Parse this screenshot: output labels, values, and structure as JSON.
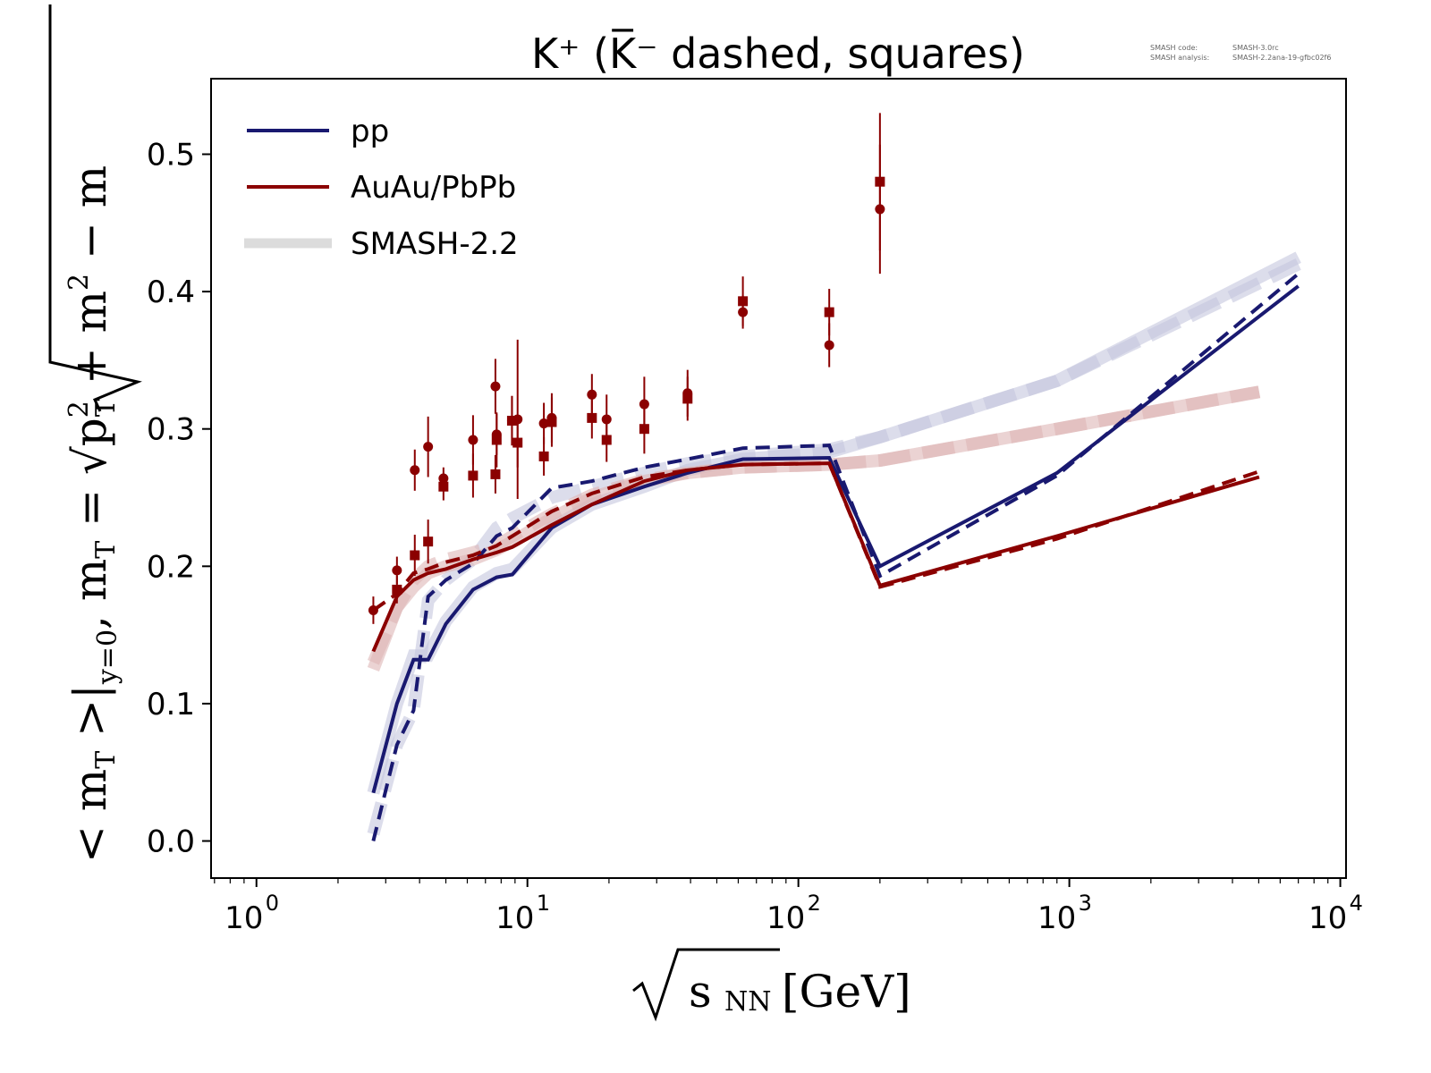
{
  "chart_data": {
    "type": "line",
    "title": "K⁺ (K̅⁻ dashed, squares)",
    "xlabel": "√sNN [GeV]",
    "xlabel_parts": {
      "root": "√",
      "main": "s",
      "sub": "NN",
      "unit": "[GeV]"
    },
    "ylabel": "<mT>|y=0, mT = √(pT² + m²) − m",
    "ylabel_parts": {
      "lhs": "< m",
      "lhs_sub": "T",
      "lhs2": " >|",
      "lhs_sub2": "y=0",
      "mid": ", m",
      "mid_sub": "T",
      "eq": " = √",
      "rad1": "p",
      "rad1_sup": "2",
      "rad1_sub": "T",
      "rad2": " + m",
      "rad2_sup": "2",
      "tail": " − m"
    },
    "xscale": "log",
    "xlim": [
      0.68,
      10500
    ],
    "ylim": [
      -0.027,
      0.555
    ],
    "x_ticks": [
      {
        "value": 1,
        "base": "10",
        "exp": "0"
      },
      {
        "value": 10,
        "base": "10",
        "exp": "1"
      },
      {
        "value": 100,
        "base": "10",
        "exp": "2"
      },
      {
        "value": 1000,
        "base": "10",
        "exp": "3"
      },
      {
        "value": 10000,
        "base": "10",
        "exp": "4"
      }
    ],
    "y_ticks": [
      {
        "value": 0.0,
        "label": "0.0"
      },
      {
        "value": 0.1,
        "label": "0.1"
      },
      {
        "value": 0.2,
        "label": "0.2"
      },
      {
        "value": 0.3,
        "label": "0.3"
      },
      {
        "value": 0.4,
        "label": "0.4"
      },
      {
        "value": 0.5,
        "label": "0.5"
      }
    ],
    "grid": false,
    "legend": {
      "placement": "top-left",
      "entries": [
        {
          "label": "pp",
          "color": "#191970",
          "style": "solid"
        },
        {
          "label": "AuAu/PbPb",
          "color": "#8b0000",
          "style": "solid"
        },
        {
          "label": "SMASH-2.2",
          "color": "#d9d9d9",
          "style": "thick"
        }
      ]
    },
    "colors": {
      "pp": "#191970",
      "auau": "#8b0000",
      "smash_pp": "#c5c7dd",
      "smash_auau": "#ddb5b5"
    },
    "series": [
      {
        "name": "pp K+ (SMASH-2.2)",
        "group": "smash_pp",
        "style": "thick-solid",
        "x": [
          2.7,
          3.3,
          3.8,
          4.3,
          5.0,
          6.3,
          7.7,
          8.8,
          12.3,
          17.3,
          27,
          39,
          62.4,
          130,
          200,
          900,
          7000
        ],
        "y": [
          0.035,
          0.1,
          0.135,
          0.135,
          0.16,
          0.185,
          0.195,
          0.198,
          0.228,
          0.245,
          0.258,
          0.27,
          0.278,
          0.283,
          0.294,
          0.335,
          0.425
        ]
      },
      {
        "name": "pp K- (SMASH-2.2)",
        "group": "smash_pp",
        "style": "thick-dashed",
        "x": [
          2.7,
          3.3,
          3.8,
          4.3,
          5.0,
          6.3,
          7.7,
          8.8,
          12.3,
          17.3,
          27,
          39,
          62.4,
          130,
          200,
          900,
          7000
        ],
        "y": [
          0.005,
          0.07,
          0.095,
          0.175,
          0.19,
          0.205,
          0.228,
          0.235,
          0.25,
          0.258,
          0.268,
          0.275,
          0.28,
          0.285,
          0.294,
          0.335,
          0.42
        ]
      },
      {
        "name": "AuAu K+ (SMASH-2.2)",
        "group": "smash_auau",
        "style": "thick-solid",
        "x": [
          2.7,
          3.3,
          3.8,
          4.3,
          5.0,
          6.3,
          7.7,
          8.8,
          12.3,
          17.3,
          27,
          39,
          62.4,
          130,
          200,
          900,
          5020
        ],
        "y": [
          0.125,
          0.17,
          0.185,
          0.195,
          0.2,
          0.205,
          0.212,
          0.218,
          0.235,
          0.25,
          0.262,
          0.268,
          0.272,
          0.274,
          0.277,
          0.3,
          0.327
        ]
      },
      {
        "name": "AuAu K- (SMASH-2.2)",
        "group": "smash_auau",
        "style": "thick-dashed",
        "x": [
          2.7,
          3.3,
          3.8,
          4.3,
          5.0,
          6.3,
          7.7,
          8.8,
          12.3,
          17.3,
          27,
          39,
          62.4,
          130,
          200,
          900,
          5020
        ],
        "y": [
          0.13,
          0.17,
          0.19,
          0.2,
          0.205,
          0.21,
          0.215,
          0.222,
          0.238,
          0.252,
          0.263,
          0.268,
          0.272,
          0.274,
          0.277,
          0.3,
          0.327
        ]
      },
      {
        "name": "pp K+",
        "group": "pp",
        "style": "solid",
        "x": [
          2.7,
          3.3,
          3.8,
          4.3,
          5.0,
          6.3,
          7.7,
          8.8,
          12.3,
          17.3,
          27,
          39,
          62.4,
          130,
          200,
          900,
          7000
        ],
        "y": [
          0.035,
          0.1,
          0.132,
          0.132,
          0.158,
          0.183,
          0.192,
          0.194,
          0.228,
          0.245,
          0.258,
          0.268,
          0.278,
          0.279,
          0.2,
          0.268,
          0.404
        ]
      },
      {
        "name": "pp K-",
        "group": "pp",
        "style": "dashed",
        "x": [
          2.7,
          3.3,
          3.8,
          4.3,
          5.0,
          6.3,
          7.7,
          8.8,
          12.3,
          17.3,
          27,
          39,
          62.4,
          130,
          200,
          900,
          7000
        ],
        "y": [
          0.0,
          0.07,
          0.095,
          0.178,
          0.19,
          0.202,
          0.222,
          0.228,
          0.257,
          0.262,
          0.272,
          0.278,
          0.286,
          0.288,
          0.193,
          0.266,
          0.413
        ]
      },
      {
        "name": "AuAu K+",
        "group": "auau",
        "style": "solid",
        "x": [
          2.7,
          3.3,
          3.8,
          4.3,
          5.0,
          6.3,
          7.7,
          8.8,
          12.3,
          17.3,
          27,
          39,
          62.4,
          130,
          200,
          900,
          5020
        ],
        "y": [
          0.138,
          0.178,
          0.19,
          0.195,
          0.198,
          0.205,
          0.21,
          0.214,
          0.23,
          0.245,
          0.262,
          0.27,
          0.274,
          0.275,
          0.186,
          0.222,
          0.265
        ]
      },
      {
        "name": "AuAu K-",
        "group": "auau",
        "style": "dashed",
        "x": [
          2.7,
          3.3,
          3.8,
          4.3,
          5.0,
          6.3,
          7.7,
          8.8,
          12.3,
          17.3,
          27,
          39,
          62.4,
          130,
          200,
          900,
          5020
        ],
        "y": [
          0.168,
          0.18,
          0.195,
          0.198,
          0.203,
          0.208,
          0.215,
          0.222,
          0.24,
          0.253,
          0.265,
          0.27,
          0.274,
          0.275,
          0.185,
          0.22,
          0.269
        ]
      }
    ],
    "data_points": {
      "color": "#8b0000",
      "kplus_circles": [
        {
          "x": 2.7,
          "y": 0.168,
          "err": 0.01
        },
        {
          "x": 3.3,
          "y": 0.197,
          "err": 0.01
        },
        {
          "x": 3.84,
          "y": 0.27,
          "err": 0.015
        },
        {
          "x": 4.3,
          "y": 0.287,
          "err": 0.022
        },
        {
          "x": 4.9,
          "y": 0.264,
          "err": 0.008
        },
        {
          "x": 6.3,
          "y": 0.292,
          "err": 0.018
        },
        {
          "x": 7.62,
          "y": 0.331,
          "err": 0.02
        },
        {
          "x": 7.7,
          "y": 0.296,
          "err": 0.015
        },
        {
          "x": 8.77,
          "y": 0.306,
          "err": 0.018
        },
        {
          "x": 9.2,
          "y": 0.307,
          "err": 0.058
        },
        {
          "x": 11.5,
          "y": 0.304,
          "err": 0.015
        },
        {
          "x": 12.3,
          "y": 0.308,
          "err": 0.018
        },
        {
          "x": 17.3,
          "y": 0.325,
          "err": 0.015
        },
        {
          "x": 19.6,
          "y": 0.307,
          "err": 0.018
        },
        {
          "x": 27,
          "y": 0.318,
          "err": 0.02
        },
        {
          "x": 39,
          "y": 0.326,
          "err": 0.017
        },
        {
          "x": 62.4,
          "y": 0.385,
          "err": 0.012
        },
        {
          "x": 130,
          "y": 0.361,
          "err": 0.016
        },
        {
          "x": 200,
          "y": 0.46,
          "err": 0.047
        }
      ],
      "kminus_squares": [
        {
          "x": 3.3,
          "y": 0.183,
          "err": 0.01
        },
        {
          "x": 3.84,
          "y": 0.208,
          "err": 0.015
        },
        {
          "x": 4.3,
          "y": 0.218,
          "err": 0.016
        },
        {
          "x": 4.9,
          "y": 0.258,
          "err": 0.01
        },
        {
          "x": 6.3,
          "y": 0.266,
          "err": 0.016
        },
        {
          "x": 7.62,
          "y": 0.267,
          "err": 0.014
        },
        {
          "x": 7.7,
          "y": 0.292,
          "err": 0.02
        },
        {
          "x": 8.77,
          "y": 0.306,
          "err": 0.018
        },
        {
          "x": 9.2,
          "y": 0.29,
          "err": 0.018
        },
        {
          "x": 11.5,
          "y": 0.28,
          "err": 0.014
        },
        {
          "x": 12.3,
          "y": 0.305,
          "err": 0.018
        },
        {
          "x": 17.3,
          "y": 0.308,
          "err": 0.015
        },
        {
          "x": 19.6,
          "y": 0.292,
          "err": 0.016
        },
        {
          "x": 27,
          "y": 0.3,
          "err": 0.018
        },
        {
          "x": 39,
          "y": 0.322,
          "err": 0.016
        },
        {
          "x": 62.4,
          "y": 0.393,
          "err": 0.018
        },
        {
          "x": 130,
          "y": 0.385,
          "err": 0.017
        },
        {
          "x": 200,
          "y": 0.48,
          "err": 0.05
        }
      ]
    }
  },
  "version_info": {
    "line1_key": "SMASH code:",
    "line1_val": "SMASH-3.0rc",
    "line2_key": "SMASH analysis:",
    "line2_val": "SMASH-2.2ana-19-gfbc02f6"
  }
}
